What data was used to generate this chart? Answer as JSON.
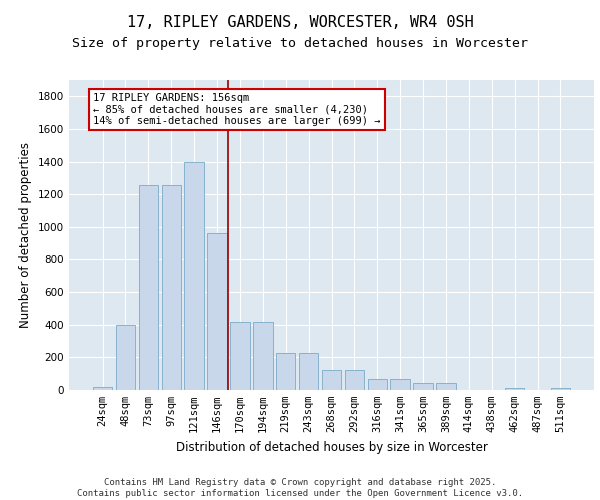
{
  "title": "17, RIPLEY GARDENS, WORCESTER, WR4 0SH",
  "subtitle": "Size of property relative to detached houses in Worcester",
  "xlabel": "Distribution of detached houses by size in Worcester",
  "ylabel": "Number of detached properties",
  "categories": [
    "24sqm",
    "48sqm",
    "73sqm",
    "97sqm",
    "121sqm",
    "146sqm",
    "170sqm",
    "194sqm",
    "219sqm",
    "243sqm",
    "268sqm",
    "292sqm",
    "316sqm",
    "341sqm",
    "365sqm",
    "389sqm",
    "414sqm",
    "438sqm",
    "462sqm",
    "487sqm",
    "511sqm"
  ],
  "values": [
    20,
    398,
    1255,
    1255,
    1400,
    960,
    415,
    415,
    225,
    225,
    120,
    120,
    65,
    65,
    40,
    40,
    0,
    0,
    15,
    0,
    10
  ],
  "bar_color": "#c8d8ea",
  "bar_edge_color": "#7aaac8",
  "vline_x": 5.5,
  "vline_color": "#990000",
  "annotation_text": "17 RIPLEY GARDENS: 156sqm\n← 85% of detached houses are smaller (4,230)\n14% of semi-detached houses are larger (699) →",
  "annotation_box_color": "#ffffff",
  "annotation_box_edge": "#cc0000",
  "ylim": [
    0,
    1900
  ],
  "yticks": [
    0,
    200,
    400,
    600,
    800,
    1000,
    1200,
    1400,
    1600,
    1800
  ],
  "bg_color": "#dde8f0",
  "plot_bg_color": "#dde8f0",
  "footer_line1": "Contains HM Land Registry data © Crown copyright and database right 2025.",
  "footer_line2": "Contains public sector information licensed under the Open Government Licence v3.0.",
  "title_fontsize": 11,
  "subtitle_fontsize": 9.5,
  "axis_label_fontsize": 8.5,
  "tick_fontsize": 7.5,
  "annotation_fontsize": 7.5,
  "footer_fontsize": 6.5
}
